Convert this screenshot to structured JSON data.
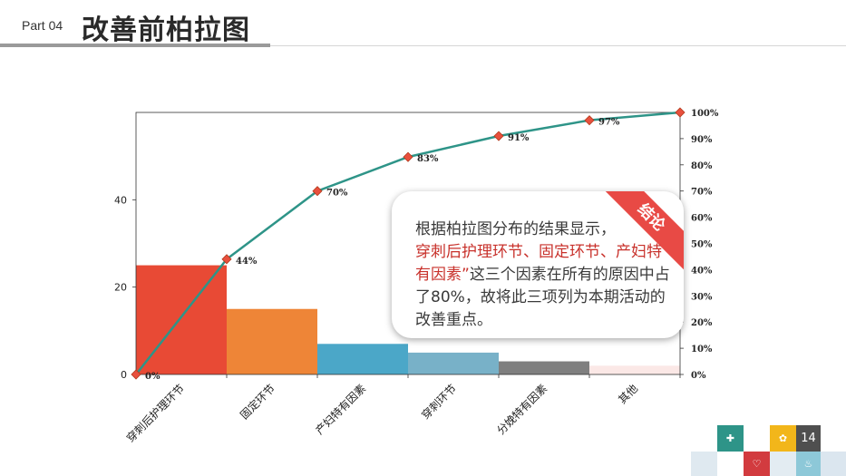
{
  "header": {
    "part": "Part 04",
    "title": "改善前柏拉图"
  },
  "callout": {
    "badge": "结论",
    "text_1": "根据柏拉图分布的结果显示，",
    "highlight": "穿刺后护理环节、固定环节、产妇特有因素”",
    "text_2": "这三个因素在所有的原因中占了80%，故将此三项列为本期活动的改善重点。"
  },
  "footer": {
    "page_number": "14"
  },
  "colors": {
    "line": "#2e9488",
    "marker": "#e8503e",
    "ribbon": "#e84a45"
  },
  "chart_data": {
    "type": "bar",
    "categories": [
      "穿刺后护理环节",
      "固定环节",
      "产妇特有因素",
      "穿刺环节",
      "分娩特有因素",
      "其他"
    ],
    "values": [
      25,
      15,
      7,
      5,
      3,
      2
    ],
    "bar_colors": [
      "#e84a35",
      "#ee8537",
      "#4ba7c8",
      "#78b1c8",
      "#7f7f7f",
      "#fbe8e6"
    ],
    "ylim": [
      0,
      60
    ],
    "y_ticks": [
      "0",
      "20",
      "40"
    ],
    "y2_ticks": [
      "0%",
      "10%",
      "20%",
      "30%",
      "40%",
      "50%",
      "60%",
      "70%",
      "80%",
      "90%",
      "100%"
    ],
    "cumulative": {
      "values": [
        0,
        44,
        70,
        83,
        91,
        97,
        100
      ],
      "labels": [
        "0%",
        "44%",
        "70%",
        "83%",
        "91%",
        "97%",
        "100%"
      ]
    },
    "title": "",
    "xlabel": "",
    "ylabel": ""
  }
}
